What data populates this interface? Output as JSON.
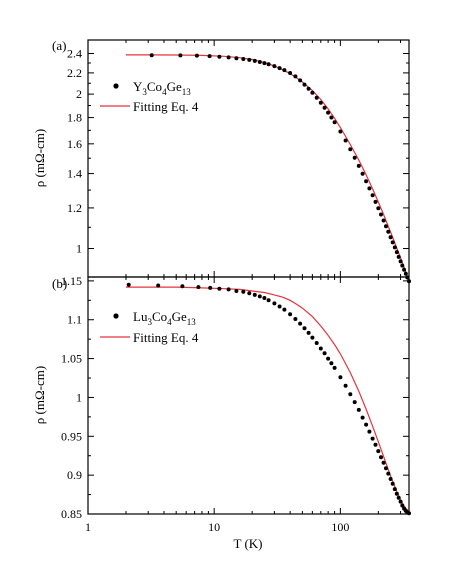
{
  "figure": {
    "shared_xlabel": "T (K)",
    "x_scale": "log",
    "xlim": [
      1,
      350
    ],
    "x_ticks": [
      1,
      10,
      100
    ],
    "x_tick_labels": [
      "1",
      "10",
      "100"
    ]
  },
  "colors": {
    "data_points": "#000000",
    "fit_line": "#e8323c",
    "axes": "#000000"
  },
  "chart_data": [
    {
      "type": "scatter",
      "panel": "(a)",
      "title": "",
      "xlabel": "",
      "ylabel": "ρ (mΩ-cm)",
      "y_scale": "log",
      "ylim": [
        0.88,
        2.55
      ],
      "y_ticks": [
        1.0,
        1.2,
        1.4,
        1.6,
        1.8,
        2.0,
        2.2,
        2.4
      ],
      "y_tick_labels": [
        "1",
        "1.2",
        "1.4",
        "1.6",
        "1.8",
        "2",
        "2.2",
        "2.4"
      ],
      "legend_position": "top-left",
      "legend": [
        "Y3Co4Ge13",
        "Fitting Eq. 4"
      ],
      "legend_formula": {
        "base": "Y",
        "s1": "3",
        "mid1": "Co",
        "s2": "4",
        "mid2": "Ge",
        "s3": "13"
      },
      "legend_fit_label": "Fitting Eq. 4",
      "series": [
        {
          "name": "Y3Co4Ge13",
          "kind": "points",
          "x": [
            3.2,
            5.4,
            7.3,
            9.2,
            11,
            13,
            15,
            17,
            19,
            21,
            23,
            25,
            27,
            30,
            33,
            36,
            40,
            44,
            48,
            52,
            56,
            60,
            65,
            70,
            75,
            80,
            85,
            90,
            100,
            110,
            120,
            130,
            140,
            150,
            160,
            170,
            180,
            190,
            200,
            210,
            220,
            230,
            240,
            250,
            260,
            270,
            280,
            290,
            300,
            310,
            320,
            330,
            340,
            350
          ],
          "y": [
            2.382,
            2.38,
            2.377,
            2.372,
            2.365,
            2.358,
            2.35,
            2.342,
            2.332,
            2.322,
            2.31,
            2.299,
            2.287,
            2.268,
            2.248,
            2.228,
            2.199,
            2.166,
            2.127,
            2.087,
            2.049,
            2.012,
            1.967,
            1.924,
            1.882,
            1.841,
            1.801,
            1.763,
            1.691,
            1.624,
            1.561,
            1.503,
            1.449,
            1.399,
            1.353,
            1.31,
            1.27,
            1.233,
            1.198,
            1.165,
            1.134,
            1.105,
            1.078,
            1.052,
            1.028,
            1.005,
            0.984,
            0.963,
            0.944,
            0.926,
            0.909,
            0.893,
            0.878,
            0.863
          ]
        },
        {
          "name": "Fitting Eq. 4",
          "kind": "line",
          "x": [
            2,
            3,
            5,
            8,
            12,
            16,
            20,
            25,
            30,
            35,
            40,
            45,
            50,
            60,
            70,
            80,
            90,
            100,
            120,
            140,
            160,
            180,
            200,
            220,
            240,
            260,
            280,
            300,
            320,
            340,
            350
          ],
          "y": [
            2.385,
            2.385,
            2.384,
            2.38,
            2.37,
            2.355,
            2.336,
            2.305,
            2.27,
            2.232,
            2.192,
            2.152,
            2.112,
            2.032,
            1.952,
            1.872,
            1.794,
            1.722,
            1.595,
            1.488,
            1.392,
            1.307,
            1.232,
            1.165,
            1.104,
            1.051,
            1.002,
            0.959,
            0.919,
            0.882,
            0.866
          ]
        }
      ]
    },
    {
      "type": "scatter",
      "panel": "(b)",
      "title": "",
      "xlabel": "T (K)",
      "ylabel": "ρ (mΩ-cm)",
      "y_scale": "linear",
      "ylim": [
        0.85,
        1.155
      ],
      "y_ticks": [
        0.85,
        0.9,
        0.95,
        1.0,
        1.05,
        1.1,
        1.15
      ],
      "y_tick_labels": [
        "0.85",
        "0.9",
        "0.95",
        "1",
        "1.05",
        "1.1",
        "1.15"
      ],
      "legend_position": "top-left",
      "legend": [
        "Lu3Co4Ge13",
        "Fitting Eq. 4"
      ],
      "legend_formula": {
        "base": "Lu",
        "s1": "3",
        "mid1": "Co",
        "s2": "4",
        "mid2": "Ge",
        "s3": "13"
      },
      "legend_fit_label": "Fitting Eq. 4",
      "series": [
        {
          "name": "Lu3Co4Ge13",
          "kind": "points",
          "x": [
            2.1,
            3.6,
            5.6,
            7.5,
            9.3,
            11,
            13,
            15,
            17,
            19,
            21,
            23,
            25,
            27,
            30,
            33,
            36,
            40,
            44,
            48,
            52,
            56,
            60,
            65,
            70,
            75,
            80,
            85,
            90,
            100,
            110,
            120,
            130,
            140,
            150,
            160,
            170,
            180,
            190,
            200,
            210,
            220,
            230,
            240,
            250,
            260,
            270,
            280,
            290,
            300,
            310,
            320,
            330,
            340,
            350
          ],
          "y": [
            1.145,
            1.144,
            1.143,
            1.142,
            1.141,
            1.14,
            1.139,
            1.137,
            1.136,
            1.134,
            1.132,
            1.13,
            1.128,
            1.125,
            1.121,
            1.117,
            1.113,
            1.107,
            1.101,
            1.095,
            1.089,
            1.083,
            1.077,
            1.07,
            1.063,
            1.057,
            1.05,
            1.044,
            1.038,
            1.026,
            1.015,
            1.004,
            0.994,
            0.984,
            0.974,
            0.965,
            0.956,
            0.947,
            0.939,
            0.931,
            0.923,
            0.916,
            0.909,
            0.902,
            0.895,
            0.889,
            0.882,
            0.876,
            0.871,
            0.866,
            0.861,
            0.857,
            0.854,
            0.852,
            0.851
          ]
        },
        {
          "name": "Fitting Eq. 4",
          "kind": "line",
          "x": [
            2,
            3,
            5,
            8,
            12,
            16,
            20,
            25,
            30,
            35,
            40,
            45,
            50,
            60,
            70,
            80,
            90,
            100,
            120,
            140,
            160,
            180,
            200,
            220,
            240,
            260,
            280,
            300,
            320,
            340,
            350
          ],
          "y": [
            1.142,
            1.142,
            1.142,
            1.141,
            1.14,
            1.139,
            1.137,
            1.135,
            1.132,
            1.129,
            1.125,
            1.12,
            1.115,
            1.104,
            1.092,
            1.08,
            1.068,
            1.056,
            1.032,
            1.008,
            0.985,
            0.963,
            0.943,
            0.924,
            0.907,
            0.892,
            0.879,
            0.868,
            0.86,
            0.855,
            0.853
          ]
        }
      ]
    }
  ]
}
